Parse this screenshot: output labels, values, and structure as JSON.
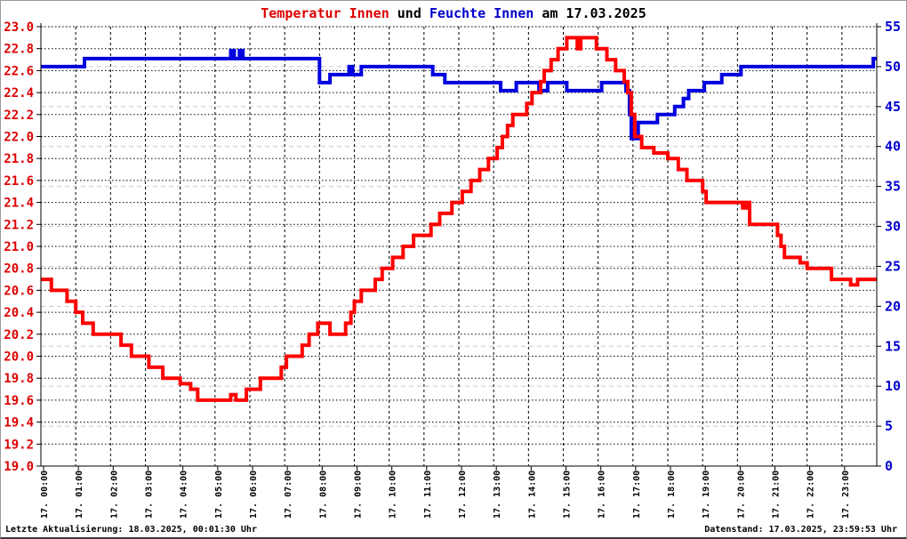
{
  "title": {
    "part_temp": "Temperatur Innen",
    "part_und": " und ",
    "part_feuchte": "Feuchte Innen",
    "part_date": " am 17.03.2025"
  },
  "footer": {
    "left": "Letzte Aktualisierung: 18.03.2025, 00:01:30 Uhr",
    "right": "Datenstand: 17.03.2025, 23:59:53 Uhr"
  },
  "chart_data": {
    "type": "line",
    "title": "Temperatur Innen und Feuchte Innen am 17.03.2025",
    "x_axis": {
      "hours": 24,
      "tick_labels": [
        "17. 00:00",
        "17. 01:00",
        "17. 02:00",
        "17. 03:00",
        "17. 04:00",
        "17. 05:00",
        "17. 06:00",
        "17. 07:00",
        "17. 08:00",
        "17. 09:00",
        "17. 10:00",
        "17. 11:00",
        "17. 12:00",
        "17. 13:00",
        "17. 14:00",
        "17. 15:00",
        "17. 16:00",
        "17. 17:00",
        "17. 18:00",
        "17. 19:00",
        "17. 20:00",
        "17. 21:00",
        "17. 22:00",
        "17. 23:00"
      ]
    },
    "y_left": {
      "min": 19.0,
      "max": 23.0,
      "step": 0.2,
      "color": "#dd0000",
      "tick_labels": [
        "23.0",
        "22.8",
        "22.6",
        "22.4",
        "22.2",
        "22.0",
        "21.8",
        "21.6",
        "21.4",
        "21.2",
        "21.0",
        "20.8",
        "20.6",
        "20.4",
        "20.2",
        "20.0",
        "19.8",
        "19.6",
        "19.4",
        "19.2",
        "19.0"
      ]
    },
    "y_right": {
      "min": 0,
      "max": 55,
      "step": 5,
      "color": "#0000cd",
      "tick_labels": [
        "55",
        "50",
        "45",
        "40",
        "35",
        "30",
        "25",
        "20",
        "15",
        "10",
        "5",
        "0"
      ]
    },
    "grid": {
      "temp_line_color": "#000000",
      "humidity_line_color": "#c9c9c9",
      "hour_line_color": "#000000"
    },
    "series": [
      {
        "name": "Temperatur Innen",
        "axis": "left",
        "color": "#ff0000",
        "style": "step",
        "points": [
          [
            0.0,
            20.7
          ],
          [
            0.3,
            20.6
          ],
          [
            0.75,
            20.5
          ],
          [
            1.0,
            20.4
          ],
          [
            1.2,
            20.3
          ],
          [
            1.5,
            20.2
          ],
          [
            2.3,
            20.1
          ],
          [
            2.6,
            20.0
          ],
          [
            3.1,
            19.9
          ],
          [
            3.5,
            19.8
          ],
          [
            4.0,
            19.75
          ],
          [
            4.3,
            19.7
          ],
          [
            4.5,
            19.6
          ],
          [
            5.45,
            19.65
          ],
          [
            5.6,
            19.6
          ],
          [
            5.9,
            19.7
          ],
          [
            6.3,
            19.8
          ],
          [
            6.9,
            19.9
          ],
          [
            7.05,
            20.0
          ],
          [
            7.5,
            20.1
          ],
          [
            7.7,
            20.2
          ],
          [
            7.95,
            20.3
          ],
          [
            8.3,
            20.2
          ],
          [
            8.75,
            20.3
          ],
          [
            8.9,
            20.4
          ],
          [
            9.0,
            20.5
          ],
          [
            9.2,
            20.6
          ],
          [
            9.6,
            20.7
          ],
          [
            9.8,
            20.8
          ],
          [
            10.1,
            20.9
          ],
          [
            10.4,
            21.0
          ],
          [
            10.7,
            21.1
          ],
          [
            11.2,
            21.2
          ],
          [
            11.45,
            21.3
          ],
          [
            11.8,
            21.4
          ],
          [
            12.1,
            21.5
          ],
          [
            12.35,
            21.6
          ],
          [
            12.6,
            21.7
          ],
          [
            12.85,
            21.8
          ],
          [
            13.1,
            21.9
          ],
          [
            13.25,
            22.0
          ],
          [
            13.4,
            22.1
          ],
          [
            13.55,
            22.2
          ],
          [
            13.95,
            22.3
          ],
          [
            14.1,
            22.4
          ],
          [
            14.35,
            22.5
          ],
          [
            14.45,
            22.6
          ],
          [
            14.65,
            22.7
          ],
          [
            14.85,
            22.8
          ],
          [
            15.1,
            22.9
          ],
          [
            15.4,
            22.8
          ],
          [
            15.5,
            22.9
          ],
          [
            15.95,
            22.8
          ],
          [
            16.25,
            22.7
          ],
          [
            16.5,
            22.6
          ],
          [
            16.75,
            22.5
          ],
          [
            16.85,
            22.4
          ],
          [
            16.95,
            22.2
          ],
          [
            17.05,
            22.0
          ],
          [
            17.25,
            21.9
          ],
          [
            17.6,
            21.85
          ],
          [
            18.0,
            21.8
          ],
          [
            18.3,
            21.7
          ],
          [
            18.55,
            21.6
          ],
          [
            19.0,
            21.5
          ],
          [
            19.1,
            21.4
          ],
          [
            20.15,
            21.35
          ],
          [
            20.25,
            21.4
          ],
          [
            20.35,
            21.2
          ],
          [
            21.15,
            21.1
          ],
          [
            21.25,
            21.0
          ],
          [
            21.35,
            20.9
          ],
          [
            21.8,
            20.85
          ],
          [
            22.0,
            20.8
          ],
          [
            22.7,
            20.7
          ],
          [
            23.25,
            20.65
          ],
          [
            23.45,
            20.7
          ]
        ]
      },
      {
        "name": "Feuchte Innen",
        "axis": "right",
        "color": "#0000e0",
        "style": "step",
        "points": [
          [
            0.0,
            50
          ],
          [
            1.25,
            51
          ],
          [
            5.45,
            52
          ],
          [
            5.55,
            51
          ],
          [
            5.7,
            52
          ],
          [
            5.8,
            51
          ],
          [
            8.0,
            48
          ],
          [
            8.3,
            49
          ],
          [
            8.85,
            50
          ],
          [
            8.95,
            49
          ],
          [
            9.2,
            50
          ],
          [
            11.25,
            49
          ],
          [
            11.6,
            48
          ],
          [
            13.2,
            47
          ],
          [
            13.65,
            48
          ],
          [
            14.3,
            47
          ],
          [
            14.55,
            48
          ],
          [
            15.1,
            47
          ],
          [
            16.1,
            48
          ],
          [
            16.8,
            47
          ],
          [
            16.9,
            44
          ],
          [
            16.95,
            41
          ],
          [
            17.15,
            43
          ],
          [
            17.7,
            44
          ],
          [
            18.2,
            45
          ],
          [
            18.45,
            46
          ],
          [
            18.6,
            47
          ],
          [
            19.05,
            48
          ],
          [
            19.55,
            49
          ],
          [
            20.1,
            50
          ],
          [
            23.9,
            51
          ]
        ]
      }
    ]
  }
}
